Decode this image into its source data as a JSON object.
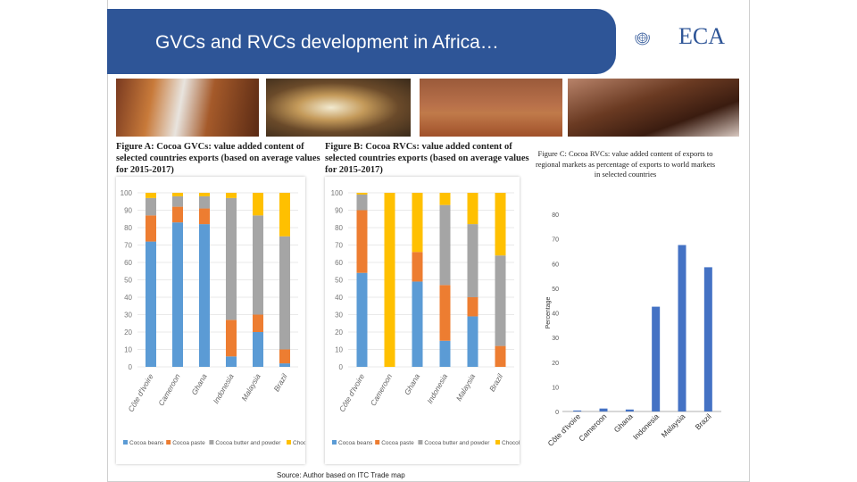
{
  "header": {
    "title": "GVCs and RVCs development in Africa…",
    "logo_text": "ECA"
  },
  "figure_a": {
    "caption": "Figure A: Cocoa GVCs: value added content of selected countries exports (based on average values for 2015-2017)"
  },
  "figure_b": {
    "caption": "Figure B: Cocoa RVCs: value added content of selected countries exports (based on average values for 2015-2017)"
  },
  "figure_c": {
    "caption": "Figure C: Cocoa RVCs: value added content of exports to regional markets as percentage of exports to world markets in selected countries"
  },
  "source": "Source: Author based on ITC Trade map",
  "colors": {
    "title_bar": "#2e5597",
    "cocoa_beans": "#5b9bd5",
    "cocoa_paste": "#ed7d31",
    "cocoa_butter": "#a5a5a5",
    "chocolate": "#ffc000",
    "bar_c": "#4472c4"
  },
  "chart_data": [
    {
      "type": "bar",
      "stacked": true,
      "categories": [
        "Côte d'Ivoire",
        "Cameroon",
        "Ghana",
        "Indonesia",
        "Malaysia",
        "Brazil"
      ],
      "series": [
        {
          "name": "Cocoa beans",
          "values": [
            72,
            83,
            82,
            6,
            20,
            2
          ]
        },
        {
          "name": "Cocoa paste",
          "values": [
            15,
            9,
            9,
            21,
            10,
            8
          ]
        },
        {
          "name": "Cocoa butter and powder",
          "values": [
            10,
            6,
            7,
            70,
            57,
            65
          ]
        },
        {
          "name": "Chocolate",
          "values": [
            3,
            2,
            2,
            3,
            13,
            25
          ]
        }
      ],
      "yticks": [
        "0",
        "10",
        "20",
        "30",
        "40",
        "50",
        "60",
        "70",
        "80",
        "90",
        "100"
      ],
      "ylim": [
        0,
        100
      ],
      "legend": "bottom"
    },
    {
      "type": "bar",
      "stacked": true,
      "categories": [
        "Côte d'Ivoire",
        "Cameroon",
        "Ghana",
        "Indonesia",
        "Malaysia",
        "Brazil"
      ],
      "series": [
        {
          "name": "Cocoa beans",
          "values": [
            54,
            0,
            49,
            15,
            29,
            0
          ]
        },
        {
          "name": "Cocoa paste",
          "values": [
            36,
            0,
            17,
            32,
            11,
            12
          ]
        },
        {
          "name": "Cocoa butter and powder",
          "values": [
            9,
            0,
            0,
            46,
            42,
            52
          ]
        },
        {
          "name": "Chocolate",
          "values": [
            1,
            100,
            34,
            7,
            18,
            36
          ]
        }
      ],
      "yticks": [
        "0",
        "10",
        "20",
        "30",
        "40",
        "50",
        "60",
        "70",
        "80",
        "90",
        "100"
      ],
      "ylim": [
        0,
        100
      ],
      "legend": "bottom"
    },
    {
      "type": "bar",
      "categories": [
        "Côte d'Ivoire",
        "Cameroon",
        "Ghana",
        "Indonesia",
        "Malaysia",
        "Brazil"
      ],
      "values": [
        0.4,
        1.2,
        0.8,
        42.5,
        67.5,
        58.5
      ],
      "ylabel": "Percentage",
      "yticks": [
        "0",
        "10",
        "20",
        "30",
        "40",
        "50",
        "60",
        "70",
        "80"
      ],
      "ylim": [
        0,
        80
      ]
    }
  ]
}
